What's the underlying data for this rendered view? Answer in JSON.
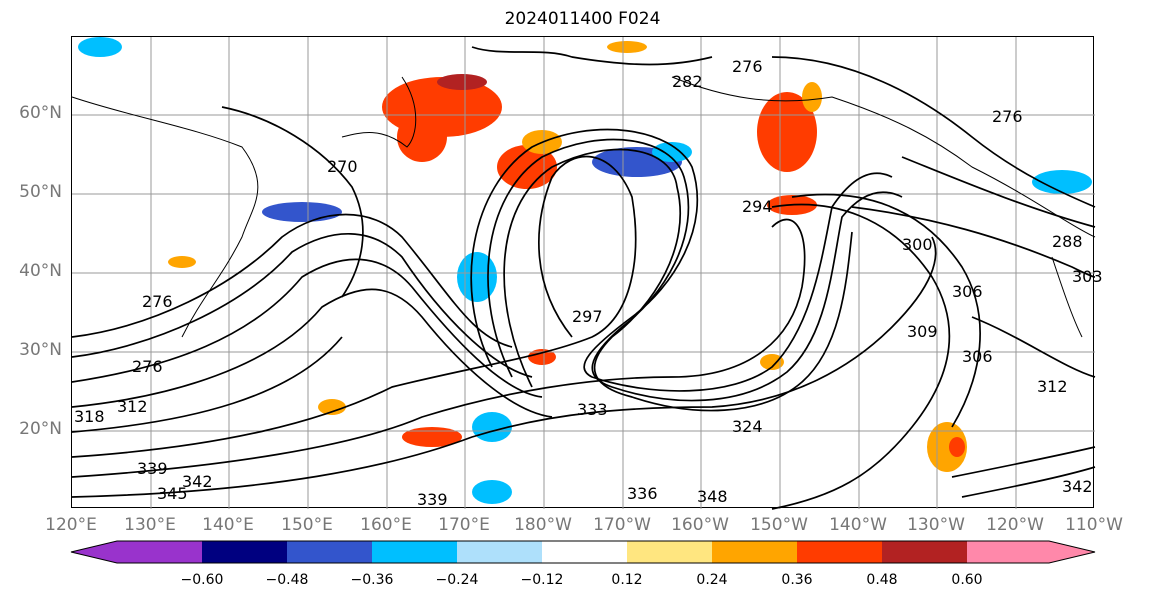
{
  "title": "2024011400 F024",
  "map": {
    "lat_labels": [
      "60°N",
      "50°N",
      "40°N",
      "30°N",
      "20°N"
    ],
    "lon_labels": [
      "120°E",
      "130°E",
      "140°E",
      "150°E",
      "160°E",
      "170°E",
      "180°W",
      "170°W",
      "160°W",
      "150°W",
      "140°W",
      "130°W",
      "120°W",
      "110°W"
    ],
    "contour_labels": [
      "270",
      "276",
      "276",
      "276",
      "276",
      "282",
      "288",
      "294",
      "297",
      "300",
      "303",
      "306",
      "306",
      "309",
      "312",
      "312",
      "318",
      "324",
      "333",
      "336",
      "339",
      "339",
      "342",
      "342",
      "345",
      "348"
    ]
  },
  "colorbar": {
    "ticks": [
      "−0.60",
      "−0.48",
      "−0.36",
      "−0.24",
      "−0.12",
      "0.12",
      "0.24",
      "0.36",
      "0.48",
      "0.60"
    ],
    "colors": [
      "#9933cc",
      "#000080",
      "#3355cc",
      "#00bfff",
      "#aee0fb",
      "#ffffff",
      "#ffe680",
      "#ffa500",
      "#ff3c00",
      "#b22222",
      "#ff88aa"
    ]
  }
}
